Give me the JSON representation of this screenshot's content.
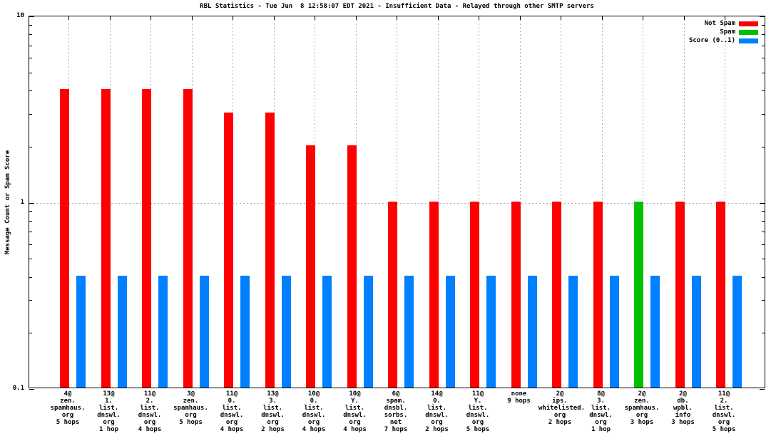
{
  "chart_data": {
    "type": "bar",
    "title": "RBL Statistics - Tue Jun  8 12:58:07 EDT 2021 - Insufficient Data - Relayed through other SMTP servers",
    "ylabel": "Message Count or Spam Score",
    "xlabel": "",
    "y_scale": "log",
    "ylim": [
      0.1,
      10
    ],
    "ytick_labels": [
      {
        "value": 10,
        "label": "10"
      },
      {
        "value": 1,
        "label": "1"
      },
      {
        "value": 0.1,
        "label": "0.1"
      }
    ],
    "grid": {
      "vertical_dashed_at_each_category": true,
      "horizontal_dashed_at_value": 1
    },
    "legend_position": "top-right-inside",
    "legend": [
      {
        "key": "not_spam",
        "label": "Not Spam",
        "color": "#ff0000"
      },
      {
        "key": "spam",
        "label": "Spam",
        "color": "#00c000"
      },
      {
        "key": "score",
        "label": "Score (0..1)",
        "color": "#0080ff"
      }
    ],
    "groups": [
      {
        "label_lines": [
          "4@",
          "zen.",
          "spamhaus.",
          "org",
          "5 hops"
        ],
        "not_spam": 4,
        "spam": 0,
        "score": 0.4
      },
      {
        "label_lines": [
          "13@",
          "1.",
          "list.",
          "dnswl.",
          "org",
          "1 hop"
        ],
        "not_spam": 4,
        "spam": 0,
        "score": 0.4
      },
      {
        "label_lines": [
          "11@",
          "2.",
          "list.",
          "dnswl.",
          "org",
          "4 hops"
        ],
        "not_spam": 4,
        "spam": 0,
        "score": 0.4
      },
      {
        "label_lines": [
          "3@",
          "zen.",
          "spamhaus.",
          "org",
          "5 hops"
        ],
        "not_spam": 4,
        "spam": 0,
        "score": 0.4
      },
      {
        "label_lines": [
          "11@",
          "0.",
          "list.",
          "dnswl.",
          "org",
          "4 hops"
        ],
        "not_spam": 3,
        "spam": 0,
        "score": 0.4
      },
      {
        "label_lines": [
          "13@",
          "3.",
          "list.",
          "dnswl.",
          "org",
          "2 hops"
        ],
        "not_spam": 3,
        "spam": 0,
        "score": 0.4
      },
      {
        "label_lines": [
          "10@",
          "0.",
          "list.",
          "dnswl.",
          "org",
          "4 hops"
        ],
        "not_spam": 2,
        "spam": 0,
        "score": 0.4
      },
      {
        "label_lines": [
          "10@",
          "Y.",
          "list.",
          "dnswl.",
          "org",
          "4 hops"
        ],
        "not_spam": 2,
        "spam": 0,
        "score": 0.4
      },
      {
        "label_lines": [
          "6@",
          "spam.",
          "dnsbl.",
          "sorbs.",
          "net",
          "7 hops"
        ],
        "not_spam": 1,
        "spam": 0,
        "score": 0.4
      },
      {
        "label_lines": [
          "14@",
          "0.",
          "list.",
          "dnswl.",
          "org",
          "2 hops"
        ],
        "not_spam": 1,
        "spam": 0,
        "score": 0.4
      },
      {
        "label_lines": [
          "11@",
          "Y.",
          "list.",
          "dnswl.",
          "org",
          "5 hops"
        ],
        "not_spam": 1,
        "spam": 0,
        "score": 0.4
      },
      {
        "label_lines": [
          "none",
          "9 hops"
        ],
        "not_spam": 1,
        "spam": 0,
        "score": 0.4
      },
      {
        "label_lines": [
          "2@",
          "ips.",
          "whitelisted.",
          "org",
          "2 hops"
        ],
        "not_spam": 1,
        "spam": 0,
        "score": 0.4
      },
      {
        "label_lines": [
          "8@",
          "3.",
          "list.",
          "dnswl.",
          "org",
          "1 hop"
        ],
        "not_spam": 1,
        "spam": 0,
        "score": 0.4
      },
      {
        "label_lines": [
          "2@",
          "zen.",
          "spamhaus.",
          "org",
          "3 hops"
        ],
        "not_spam": 0,
        "spam": 1,
        "score": 0.4
      },
      {
        "label_lines": [
          "2@",
          "db.",
          "wpbl.",
          "info",
          "3 hops"
        ],
        "not_spam": 1,
        "spam": 0,
        "score": 0.4
      },
      {
        "label_lines": [
          "11@",
          "2.",
          "list.",
          "dnswl.",
          "org",
          "5 hops"
        ],
        "not_spam": 1,
        "spam": 0,
        "score": 0.4
      }
    ]
  },
  "colors": {
    "not_spam": "#ff0000",
    "spam": "#00c000",
    "score": "#0080ff",
    "grid": "#b0b0b0",
    "axis": "#000000",
    "background": "#ffffff",
    "text": "#000000"
  }
}
